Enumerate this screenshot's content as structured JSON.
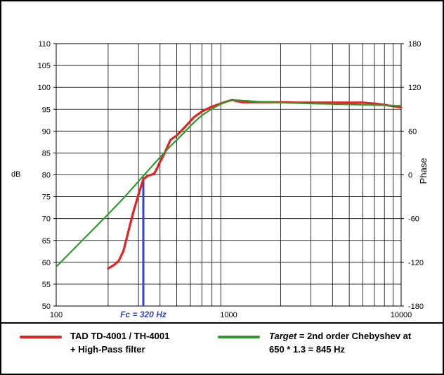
{
  "chart_data": {
    "type": "line",
    "x_scale": "log",
    "xlim": [
      100,
      10000
    ],
    "ylim": [
      50,
      110
    ],
    "y2lim": [
      -180,
      180
    ],
    "grid": true,
    "x_tick_labels": [
      "100",
      "1000",
      "10000"
    ],
    "y_tick_values": [
      50,
      55,
      60,
      65,
      70,
      75,
      80,
      85,
      90,
      95,
      100,
      105,
      110
    ],
    "y2_tick_values": [
      -180,
      -120,
      -60,
      0,
      60,
      120,
      180
    ],
    "ylabel": "dB",
    "y2label": "Phase",
    "annotations": [
      {
        "text": "Fc = 320 Hz",
        "x": 320,
        "y_from": 50,
        "y_to": 79.5,
        "color": "#3344cc"
      }
    ],
    "series": [
      {
        "name": "TAD TD-4001 / TH-4001 + High-Pass filter",
        "color": "#e32222",
        "x": [
          200,
          215,
          230,
          245,
          260,
          280,
          300,
          320,
          340,
          355,
          370,
          385,
          400,
          420,
          440,
          460,
          500,
          560,
          630,
          700,
          800,
          900,
          1000,
          1050,
          1100,
          1200,
          1400,
          1700,
          2000,
          2500,
          3000,
          4000,
          5000,
          6000,
          7000,
          8000,
          9000,
          10000
        ],
        "values": [
          58.6,
          59.3,
          60.3,
          62.5,
          66.5,
          71.5,
          75.5,
          79.0,
          79.8,
          80.0,
          80.3,
          81.5,
          83.0,
          84.5,
          86.3,
          88.0,
          89.0,
          91.0,
          93.2,
          94.5,
          95.6,
          96.3,
          96.9,
          97.1,
          96.9,
          96.6,
          96.6,
          96.6,
          96.6,
          96.5,
          96.5,
          96.5,
          96.5,
          96.5,
          96.3,
          96.0,
          95.7,
          95.4
        ]
      },
      {
        "name": "Target = 2nd order Chebyshev at 650 * 1.3 = 845 Hz",
        "color": "#2e9a2e",
        "x": [
          100,
          150,
          200,
          250,
          300,
          350,
          400,
          450,
          500,
          550,
          600,
          650,
          700,
          800,
          900,
          1000,
          1100,
          1200,
          1300,
          1500,
          1800,
          2000,
          2500,
          3000,
          4000,
          5000,
          6000,
          8000,
          10000
        ],
        "values": [
          59.0,
          66.0,
          71.0,
          75.0,
          78.5,
          81.5,
          84.0,
          86.2,
          88.0,
          89.6,
          91.2,
          92.5,
          93.6,
          95.1,
          96.2,
          96.9,
          97.1,
          97.0,
          96.9,
          96.7,
          96.6,
          96.5,
          96.4,
          96.3,
          96.2,
          96.1,
          96.0,
          95.9,
          95.8
        ]
      }
    ]
  },
  "legend": {
    "red_line_1": "TAD TD-4001 / TH-4001",
    "red_line_2": "+ High-Pass filter",
    "green_italic": "Target",
    "green_line_1_rest": " = 2nd order Chebyshev at",
    "green_line_2": "650 * 1.3 = 845 Hz"
  }
}
